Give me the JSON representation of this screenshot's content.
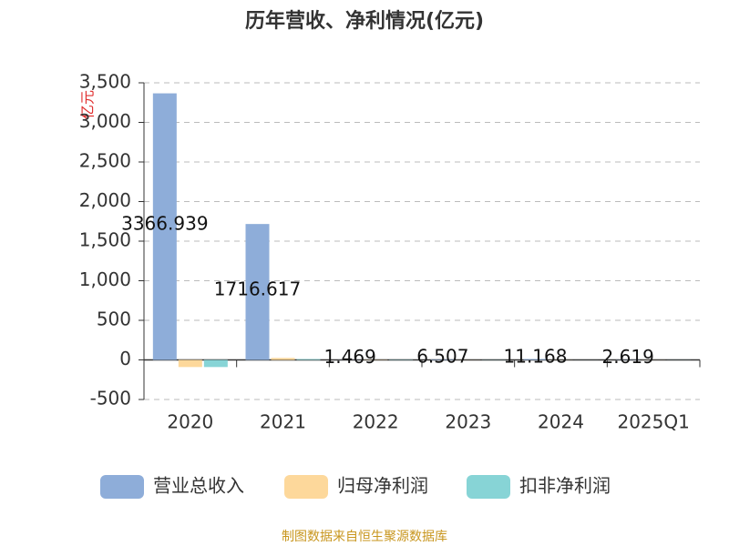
{
  "chart_data": {
    "type": "bar",
    "title": "历年营收、净利情况(亿元)",
    "y_label": "亿元",
    "source": "制图数据来自恒生聚源数据库",
    "categories": [
      "2020",
      "2021",
      "2022",
      "2023",
      "2024",
      "2025Q1"
    ],
    "series": [
      {
        "name": "营业总收入",
        "color": "#8eadd9",
        "values": [
          3366.939,
          1716.617,
          1.469,
          6.507,
          11.168,
          2.619
        ]
      },
      {
        "name": "归母净利润",
        "color": "#fdd89b",
        "values": [
          -90,
          25,
          -3,
          -1,
          1,
          -1
        ]
      },
      {
        "name": "扣非净利润",
        "color": "#87d4d6",
        "values": [
          -90,
          10,
          -4,
          -2,
          0.5,
          -1
        ]
      }
    ],
    "label_series": 0,
    "ylim": [
      -500,
      3500
    ],
    "yticks": [
      -500,
      0,
      500,
      {
        "value": 1000,
        "label": "1,000"
      },
      {
        "value": 1500,
        "label": "1,500"
      },
      {
        "value": 2000,
        "label": "2,000"
      },
      {
        "value": 2500,
        "label": "2,500"
      },
      {
        "value": 3000,
        "label": "3,000"
      },
      {
        "value": 3500,
        "label": "3,500"
      }
    ],
    "grid": true
  }
}
